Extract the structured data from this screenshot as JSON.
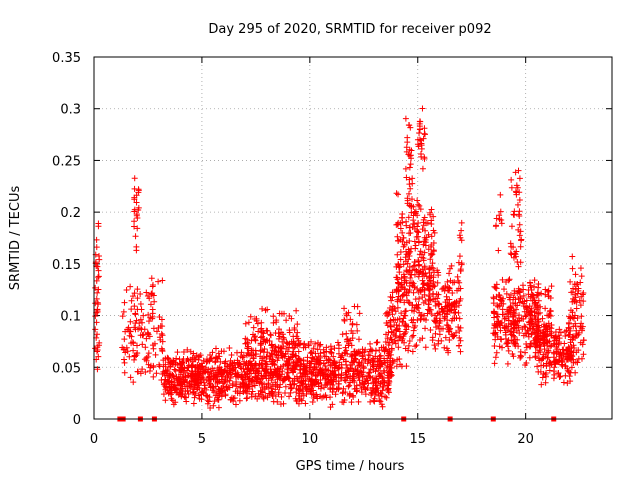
{
  "chart_data": {
    "type": "scatter",
    "title": "Day 295 of 2020, SRMTID for receiver p092",
    "xlabel": "GPS time / hours",
    "ylabel": "SRMTID / TECUs",
    "xlim": [
      0,
      24
    ],
    "ylim": [
      0,
      0.35
    ],
    "grid": true,
    "marker": "+",
    "color": "#ff0000",
    "x_ticks": [
      {
        "value": 0,
        "label": "0"
      },
      {
        "value": 5,
        "label": "5"
      },
      {
        "value": 10,
        "label": "10"
      },
      {
        "value": 15,
        "label": "15"
      },
      {
        "value": 20,
        "label": "20"
      }
    ],
    "y_ticks": [
      {
        "value": 0,
        "label": "0"
      },
      {
        "value": 0.05,
        "label": "0.05"
      },
      {
        "value": 0.1,
        "label": "0.1"
      },
      {
        "value": 0.15,
        "label": "0.15"
      },
      {
        "value": 0.2,
        "label": "0.2"
      },
      {
        "value": 0.25,
        "label": "0.25"
      },
      {
        "value": 0.3,
        "label": "0.3"
      },
      {
        "value": 0.35,
        "label": "0.35"
      }
    ],
    "baseline_markers_x": [
      1.2,
      1.35,
      2.15,
      2.8,
      14.35,
      16.5,
      18.5,
      21.3
    ],
    "clusters": [
      {
        "x": [
          0.05,
          0.25
        ],
        "y": [
          0.03,
          0.2
        ],
        "n": 40
      },
      {
        "x": [
          1.3,
          2.6
        ],
        "y": [
          0.03,
          0.13
        ],
        "n": 90
      },
      {
        "x": [
          1.85,
          2.1
        ],
        "y": [
          0.15,
          0.25
        ],
        "n": 22
      },
      {
        "x": [
          2.6,
          3.2
        ],
        "y": [
          0.03,
          0.15
        ],
        "n": 45
      },
      {
        "x": [
          3.2,
          7.0
        ],
        "y": [
          0.01,
          0.07
        ],
        "n": 500
      },
      {
        "x": [
          7.0,
          13.8
        ],
        "y": [
          0.01,
          0.08
        ],
        "n": 900
      },
      {
        "x": [
          7.0,
          9.5
        ],
        "y": [
          0.05,
          0.11
        ],
        "n": 90
      },
      {
        "x": [
          11.5,
          12.4
        ],
        "y": [
          0.06,
          0.12
        ],
        "n": 25
      },
      {
        "x": [
          13.5,
          14.5
        ],
        "y": [
          0.04,
          0.13
        ],
        "n": 90
      },
      {
        "x": [
          14.0,
          15.8
        ],
        "y": [
          0.06,
          0.23
        ],
        "n": 320
      },
      {
        "x": [
          14.45,
          14.75
        ],
        "y": [
          0.18,
          0.325
        ],
        "n": 30
      },
      {
        "x": [
          15.0,
          15.35
        ],
        "y": [
          0.22,
          0.31
        ],
        "n": 25
      },
      {
        "x": [
          15.8,
          17.0
        ],
        "y": [
          0.06,
          0.15
        ],
        "n": 140
      },
      {
        "x": [
          16.9,
          17.1
        ],
        "y": [
          0.13,
          0.22
        ],
        "n": 10
      },
      {
        "x": [
          18.5,
          20.6
        ],
        "y": [
          0.05,
          0.14
        ],
        "n": 280
      },
      {
        "x": [
          18.6,
          18.9
        ],
        "y": [
          0.16,
          0.225
        ],
        "n": 10
      },
      {
        "x": [
          19.3,
          19.8
        ],
        "y": [
          0.13,
          0.26
        ],
        "n": 40
      },
      {
        "x": [
          20.4,
          21.2
        ],
        "y": [
          0.03,
          0.14
        ],
        "n": 140
      },
      {
        "x": [
          21.3,
          22.1
        ],
        "y": [
          0.03,
          0.09
        ],
        "n": 100
      },
      {
        "x": [
          22.0,
          22.7
        ],
        "y": [
          0.03,
          0.16
        ],
        "n": 90
      }
    ]
  }
}
